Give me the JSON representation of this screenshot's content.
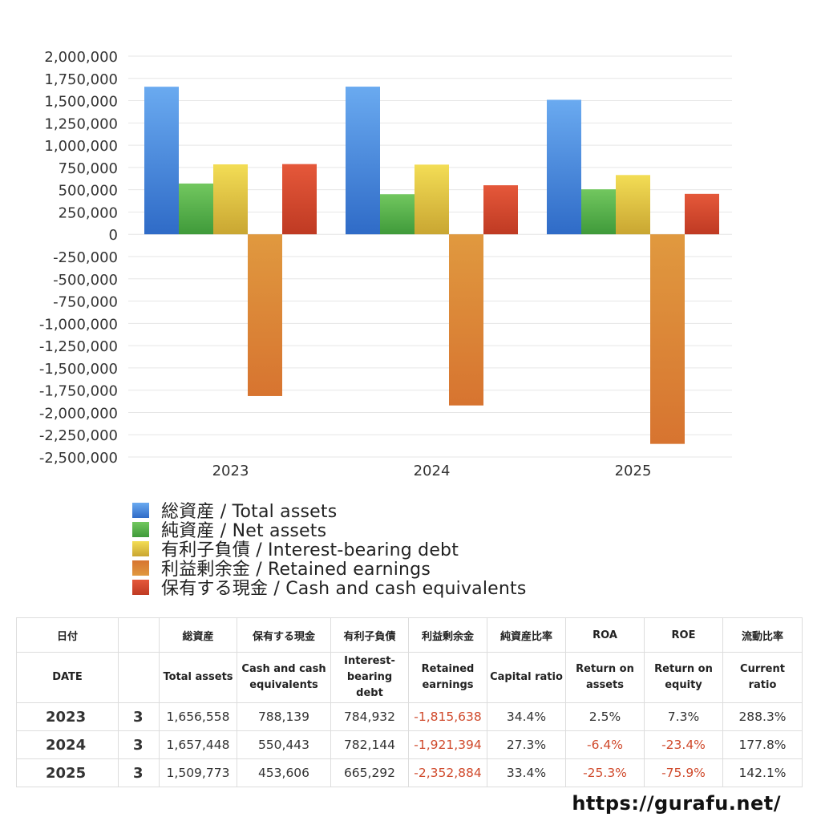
{
  "chart_data": {
    "type": "bar",
    "categories": [
      "2023",
      "2024",
      "2025"
    ],
    "ylim": [
      -2500000,
      2000000
    ],
    "yticks": [
      2000000,
      1750000,
      1500000,
      1250000,
      1000000,
      750000,
      500000,
      250000,
      0,
      -250000,
      -500000,
      -750000,
      -1000000,
      -1250000,
      -1500000,
      -1750000,
      -2000000,
      -2250000,
      -2500000
    ],
    "ytick_labels": [
      "2,000,000",
      "1,750,000",
      "1,500,000",
      "1,250,000",
      "1,000,000",
      "750,000",
      "500,000",
      "250,000",
      "0",
      "-250,000",
      "-500,000",
      "-750,000",
      "-1,000,000",
      "-1,250,000",
      "-1,500,000",
      "-1,750,000",
      "-2,000,000",
      "-2,250,000",
      "-2,500,000"
    ],
    "grid": true,
    "legend_position": "bottom",
    "series": [
      {
        "name": "総資産 / Total assets",
        "colors": [
          "#2f6bc7",
          "#6aaaf0"
        ],
        "values": [
          1656558,
          1657448,
          1509773
        ]
      },
      {
        "name": "純資産 / Net assets",
        "colors": [
          "#3f9a3a",
          "#72c75f"
        ],
        "values": [
          570000,
          450000,
          505000
        ]
      },
      {
        "name": "有利子負債 / Interest-bearing debt",
        "colors": [
          "#c9a632",
          "#f3dd55"
        ],
        "values": [
          784932,
          782144,
          665292
        ]
      },
      {
        "name": "利益剰余金 / Retained earnings",
        "colors": [
          "#e0993f",
          "#d77430"
        ],
        "values": [
          -1815638,
          -1921394,
          -2352884
        ]
      },
      {
        "name": "保有する現金 /  Cash and cash equivalents",
        "colors": [
          "#bf3a23",
          "#e5583a"
        ],
        "values": [
          788139,
          550443,
          453606
        ]
      }
    ]
  },
  "table": {
    "header_jp": [
      "日付",
      "",
      "総資産",
      "保有する現金",
      "有利子負債",
      "利益剰余金",
      "純資産比率",
      "ROA",
      "ROE",
      "流動比率"
    ],
    "header_en": [
      "DATE",
      "",
      "Total assets",
      "Cash and cash equivalents",
      "Interest-bearing debt",
      "Retained earnings",
      "Capital ratio",
      "Return on assets",
      "Return on equity",
      "Current ratio"
    ],
    "rows": [
      [
        "2023",
        "3",
        "1,656,558",
        "788,139",
        "784,932",
        "-1,815,638",
        "34.4%",
        "2.5%",
        "7.3%",
        "288.3%"
      ],
      [
        "2024",
        "3",
        "1,657,448",
        "550,443",
        "782,144",
        "-1,921,394",
        "27.3%",
        "-6.4%",
        "-23.4%",
        "177.8%"
      ],
      [
        "2025",
        "3",
        "1,509,773",
        "453,606",
        "665,292",
        "-2,352,884",
        "33.4%",
        "-25.3%",
        "-75.9%",
        "142.1%"
      ]
    ]
  },
  "site_url": "https://gurafu.net/"
}
